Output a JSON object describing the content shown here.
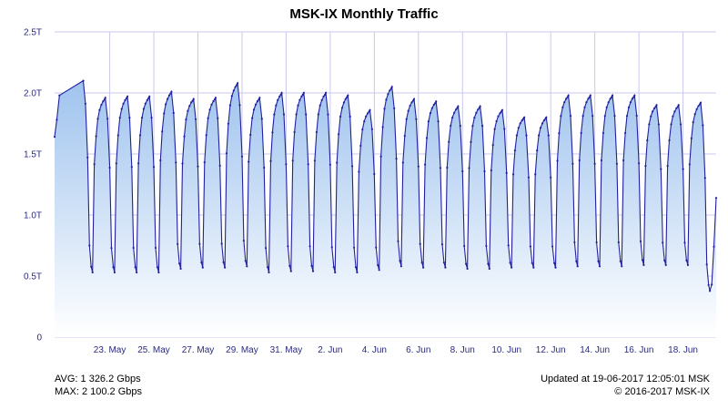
{
  "chart_data": {
    "type": "area",
    "title": "MSK-IX Monthly Traffic",
    "xlabel": "",
    "ylabel": "",
    "y_unit": "Tbps",
    "y_ticks": [
      {
        "value": 0,
        "label": "0"
      },
      {
        "value": 0.5,
        "label": "0.5T"
      },
      {
        "value": 1.0,
        "label": "1.0T"
      },
      {
        "value": 1.5,
        "label": "1.5T"
      },
      {
        "value": 2.0,
        "label": "2.0T"
      },
      {
        "value": 2.5,
        "label": "2.5T"
      }
    ],
    "ylim": [
      0,
      2.5
    ],
    "x_range": [
      "2017-05-20T12:00",
      "2017-06-19T12:05"
    ],
    "x_ticks": [
      {
        "value": "2017-05-23",
        "label": "23. May"
      },
      {
        "value": "2017-05-25",
        "label": "25. May"
      },
      {
        "value": "2017-05-27",
        "label": "27. May"
      },
      {
        "value": "2017-05-29",
        "label": "29. May"
      },
      {
        "value": "2017-05-31",
        "label": "31. May"
      },
      {
        "value": "2017-06-02",
        "label": "2. Jun"
      },
      {
        "value": "2017-06-04",
        "label": "4. Jun"
      },
      {
        "value": "2017-06-06",
        "label": "6. Jun"
      },
      {
        "value": "2017-06-08",
        "label": "8. Jun"
      },
      {
        "value": "2017-06-10",
        "label": "10. Jun"
      },
      {
        "value": "2017-06-12",
        "label": "12. Jun"
      },
      {
        "value": "2017-06-14",
        "label": "14. Jun"
      },
      {
        "value": "2017-06-16",
        "label": "16. Jun"
      },
      {
        "value": "2017-06-18",
        "label": "18. Jun"
      }
    ],
    "grid": {
      "vertical": true,
      "horizontal": true
    },
    "series": [
      {
        "daily": [
          {
            "date": "2017-05-21",
            "peak": 2.1,
            "trough": 0.53
          },
          {
            "date": "2017-05-22",
            "peak": 1.96,
            "trough": 0.53
          },
          {
            "date": "2017-05-23",
            "peak": 1.97,
            "trough": 0.53
          },
          {
            "date": "2017-05-24",
            "peak": 1.97,
            "trough": 0.53
          },
          {
            "date": "2017-05-25",
            "peak": 2.01,
            "trough": 0.56
          },
          {
            "date": "2017-05-26",
            "peak": 1.95,
            "trough": 0.57
          },
          {
            "date": "2017-05-27",
            "peak": 1.96,
            "trough": 0.57
          },
          {
            "date": "2017-05-28",
            "peak": 2.08,
            "trough": 0.58
          },
          {
            "date": "2017-05-29",
            "peak": 1.96,
            "trough": 0.53
          },
          {
            "date": "2017-05-30",
            "peak": 2.0,
            "trough": 0.54
          },
          {
            "date": "2017-05-31",
            "peak": 2.0,
            "trough": 0.54
          },
          {
            "date": "2017-06-01",
            "peak": 2.0,
            "trough": 0.53
          },
          {
            "date": "2017-06-02",
            "peak": 1.98,
            "trough": 0.53
          },
          {
            "date": "2017-06-03",
            "peak": 1.86,
            "trough": 0.55
          },
          {
            "date": "2017-06-04",
            "peak": 2.05,
            "trough": 0.58
          },
          {
            "date": "2017-06-05",
            "peak": 1.95,
            "trough": 0.57
          },
          {
            "date": "2017-06-06",
            "peak": 1.93,
            "trough": 0.57
          },
          {
            "date": "2017-06-07",
            "peak": 1.89,
            "trough": 0.56
          },
          {
            "date": "2017-06-08",
            "peak": 1.89,
            "trough": 0.56
          },
          {
            "date": "2017-06-09",
            "peak": 1.86,
            "trough": 0.57
          },
          {
            "date": "2017-06-10",
            "peak": 1.8,
            "trough": 0.57
          },
          {
            "date": "2017-06-11",
            "peak": 1.8,
            "trough": 0.57
          },
          {
            "date": "2017-06-12",
            "peak": 1.98,
            "trough": 0.58
          },
          {
            "date": "2017-06-13",
            "peak": 1.98,
            "trough": 0.58
          },
          {
            "date": "2017-06-14",
            "peak": 1.98,
            "trough": 0.58
          },
          {
            "date": "2017-06-15",
            "peak": 1.98,
            "trough": 0.59
          },
          {
            "date": "2017-06-16",
            "peak": 1.9,
            "trough": 0.59
          },
          {
            "date": "2017-06-17",
            "peak": 1.9,
            "trough": 0.59
          },
          {
            "date": "2017-06-18",
            "peak": 1.92,
            "trough": 0.38
          }
        ],
        "end_value": 1.14
      }
    ],
    "colors": {
      "line": "#2020a0",
      "fill_top": "#9fc3ee",
      "fill_bottom": "#ffffff",
      "grid": "#c8c8ee",
      "axis_text": "#2a2a80"
    }
  },
  "footer": {
    "avg": "AVG: 1 326.2 Gbps",
    "max": "MAX: 2 100.2 Gbps",
    "updated": "Updated at 19-06-2017 12:05:01 MSK",
    "copyright": "© 2016-2017 MSK-IX"
  }
}
